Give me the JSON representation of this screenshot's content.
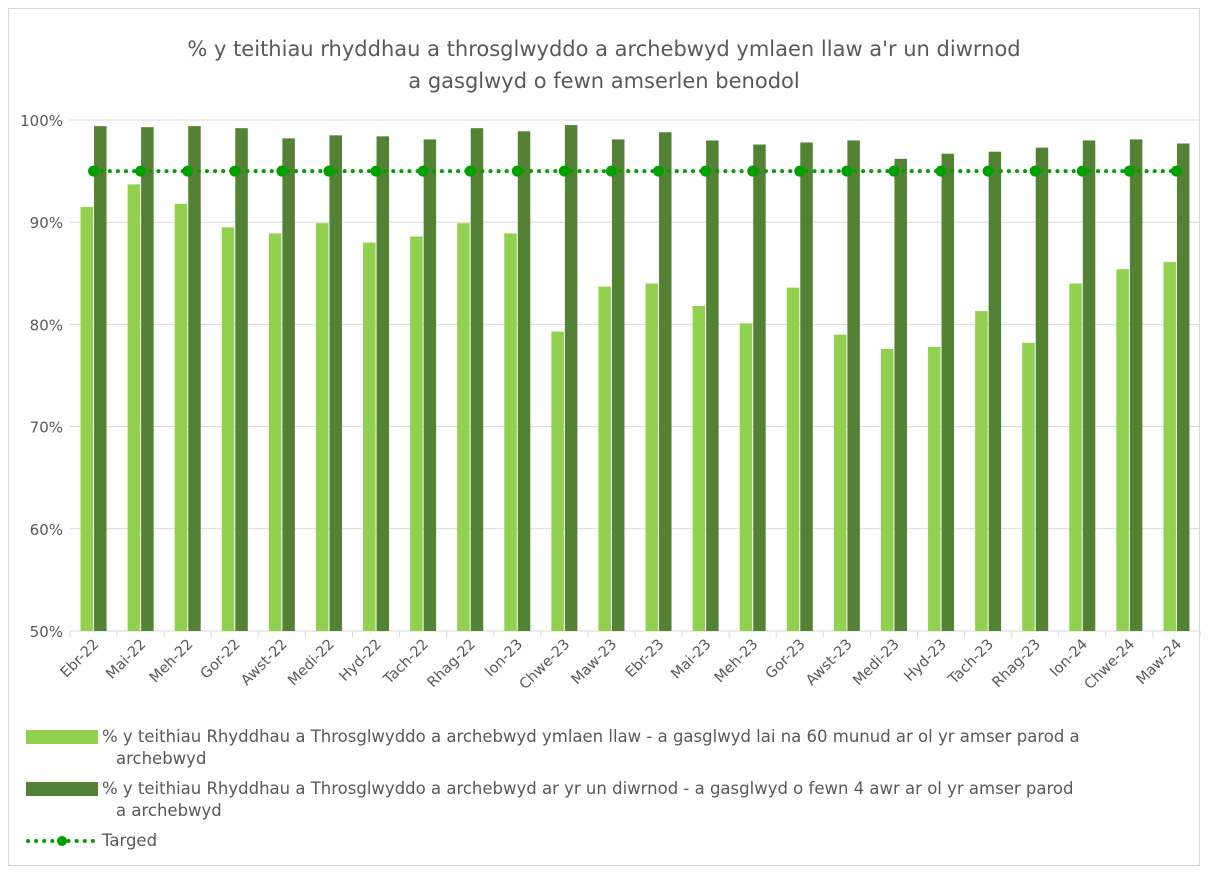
{
  "chart_data": {
    "type": "bar",
    "title_line1": "% y teithiau rhyddhau a throsglwyddo a archebwyd ymlaen llaw a'r un diwrnod",
    "title_line2": "a gasglwyd o fewn amserlen benodol",
    "xlabel": "",
    "ylabel": "",
    "ylim": [
      50,
      100
    ],
    "yticks": [
      50,
      60,
      70,
      80,
      90,
      100
    ],
    "ytick_labels": [
      "50%",
      "60%",
      "70%",
      "80%",
      "90%",
      "100%"
    ],
    "categories": [
      "Ebr-22",
      "Mai-22",
      "Meh-22",
      "Gor-22",
      "Awst-22",
      "Medi-22",
      "Hyd-22",
      "Tach-22",
      "Rhag-22",
      "Ion-23",
      "Chwe-23",
      "Maw-23",
      "Ebr-23",
      "Mai-23",
      "Meh-23",
      "Gor-23",
      "Awst-23",
      "Medi-23",
      "Hyd-23",
      "Tach-23",
      "Rhag-23",
      "Ion-24",
      "Chwe-24",
      "Maw-24"
    ],
    "series": [
      {
        "name": "% y teithiau Rhyddhau a Throsglwyddo a archebwyd ymlaen llaw - a gasglwyd lai na 60 munud ar ol yr amser parod a archebwyd",
        "kind": "bar",
        "color": "#92d050",
        "values": [
          91.5,
          93.7,
          91.8,
          89.5,
          88.9,
          89.9,
          88.0,
          88.6,
          89.9,
          88.9,
          79.3,
          83.7,
          84.0,
          81.8,
          80.1,
          83.6,
          79.0,
          77.6,
          77.8,
          81.3,
          78.2,
          84.0,
          85.4,
          86.1
        ]
      },
      {
        "name": "% y teithiau Rhyddhau a Throsglwyddo a archebwyd ar yr un diwrnod - a gasglwyd o fewn 4 awr ar ol yr amser parod a archebwyd",
        "kind": "bar",
        "color": "#548235",
        "values": [
          99.4,
          99.3,
          99.4,
          99.2,
          98.2,
          98.5,
          98.4,
          98.1,
          99.2,
          98.9,
          99.5,
          98.1,
          98.8,
          98.0,
          97.6,
          97.8,
          98.0,
          96.2,
          96.7,
          96.9,
          97.3,
          98.0,
          98.1,
          97.7
        ]
      },
      {
        "name": "Targed",
        "kind": "line",
        "color": "#00a000",
        "values": [
          95,
          95,
          95,
          95,
          95,
          95,
          95,
          95,
          95,
          95,
          95,
          95,
          95,
          95,
          95,
          95,
          95,
          95,
          95,
          95,
          95,
          95,
          95,
          95
        ]
      }
    ],
    "grid": "horizontal",
    "legend_position": "bottom"
  },
  "legend": {
    "series1_line1": "% y teithiau Rhyddhau a Throsglwyddo a archebwyd ymlaen llaw - a gasglwyd lai na 60 munud ar ol yr amser parod a",
    "series1_line2": "archebwyd",
    "series2_line1": "% y teithiau Rhyddhau a Throsglwyddo a archebwyd ar yr un diwrnod - a gasglwyd o fewn 4 awr ar ol yr amser parod",
    "series2_line2": "a archebwyd",
    "series3": "Targed"
  }
}
